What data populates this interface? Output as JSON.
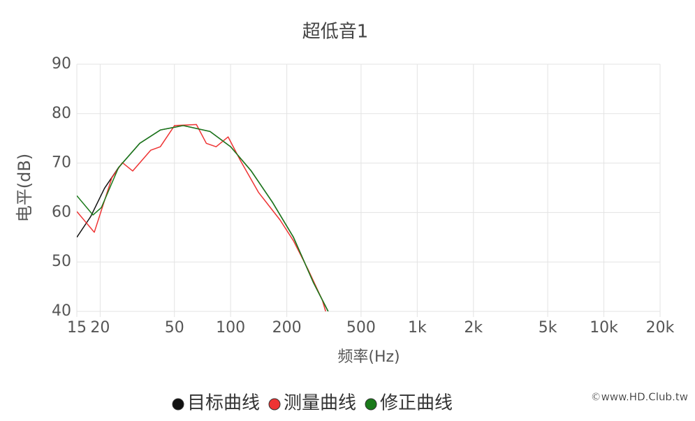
{
  "chart_data": {
    "type": "line",
    "title": "超低音1",
    "x_label": "频率(Hz)",
    "y_label": "电平(dB)",
    "x_scale": "log",
    "grid": true,
    "xlim": [
      15,
      20000
    ],
    "ylim": [
      40,
      90
    ],
    "xticks": [
      15,
      20,
      50,
      100,
      200,
      500,
      {
        "value": 1000,
        "label": "1k"
      },
      {
        "value": 2000,
        "label": "2k"
      },
      {
        "value": 5000,
        "label": "5k"
      },
      {
        "value": 10000,
        "label": "10k"
      },
      {
        "value": 20000,
        "label": "20k"
      }
    ],
    "yticks": [
      40,
      50,
      60,
      70,
      80,
      90
    ],
    "series": [
      {
        "name": "目标曲线",
        "color": "#111111",
        "x": [
          15,
          17.8,
          21.1,
          25.1,
          32.6,
          42,
          55.7,
          77.6,
          100,
          129,
          168,
          217,
          278,
          333
        ],
        "values": [
          55,
          59.2,
          64.9,
          69.1,
          74,
          76.7,
          77.6,
          76.4,
          73.3,
          68.4,
          62,
          55,
          45.8,
          40
        ]
      },
      {
        "name": "测量曲线",
        "color": "#ee3333",
        "x": [
          15,
          18.6,
          23.1,
          26.3,
          29.9,
          37.3,
          42,
          50.1,
          65.6,
          74.1,
          83.6,
          97,
          113,
          141,
          184,
          217,
          259,
          310,
          323
        ],
        "values": [
          60.2,
          56,
          67,
          70.1,
          68.4,
          72.6,
          73.3,
          77.6,
          77.8,
          74,
          73.3,
          75.3,
          70.5,
          64.1,
          58.5,
          54.3,
          48.6,
          42.3,
          40
        ]
      },
      {
        "name": "修正曲线",
        "color": "#1a7a1a",
        "x": [
          15,
          18.3,
          20.3,
          25.1,
          32.6,
          42,
          55.7,
          77.6,
          100,
          129,
          168,
          217,
          278,
          333
        ],
        "values": [
          63.4,
          59.5,
          61,
          69.1,
          74,
          76.7,
          77.6,
          76.4,
          73.3,
          68.4,
          62,
          55,
          45.8,
          40
        ]
      }
    ],
    "watermark": "©www.HD.Club.tw"
  }
}
